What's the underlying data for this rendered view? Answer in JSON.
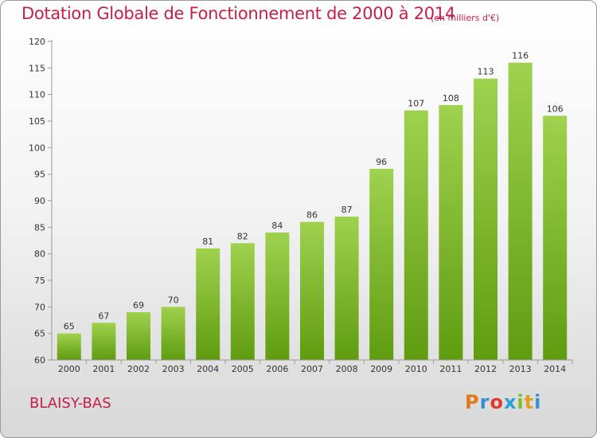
{
  "header": {
    "title": "Dotation Globale de Fonctionnement de 2000 à 2014",
    "unit_note": "(en milliers d'€)"
  },
  "footer": {
    "commune": "BLAISY-BAS",
    "logo_text": "Proxiti"
  },
  "colors": {
    "title": "#c4204a",
    "bar_top": "#9fd24f",
    "bar_bottom": "#5f9c10",
    "logo": [
      "#e07a20",
      "#3a8fd0",
      "#e03a2a",
      "#2aa0d8",
      "#7bbf2a",
      "#e0a020",
      "#3a8fd0"
    ]
  },
  "chart_data": {
    "type": "bar",
    "title": "Dotation Globale de Fonctionnement de 2000 à 2014",
    "subtitle": "(en milliers d'€)",
    "xlabel": "",
    "ylabel": "",
    "categories": [
      "2000",
      "2001",
      "2002",
      "2003",
      "2004",
      "2005",
      "2006",
      "2007",
      "2008",
      "2009",
      "2010",
      "2011",
      "2012",
      "2013",
      "2014"
    ],
    "values": [
      65,
      67,
      69,
      70,
      81,
      82,
      84,
      86,
      87,
      96,
      107,
      108,
      113,
      116,
      106
    ],
    "ylim": [
      60,
      120
    ],
    "yticks": [
      60,
      65,
      70,
      75,
      80,
      85,
      90,
      95,
      100,
      105,
      110,
      115,
      120
    ],
    "grid": false,
    "legend": "none",
    "data_labels": true
  }
}
